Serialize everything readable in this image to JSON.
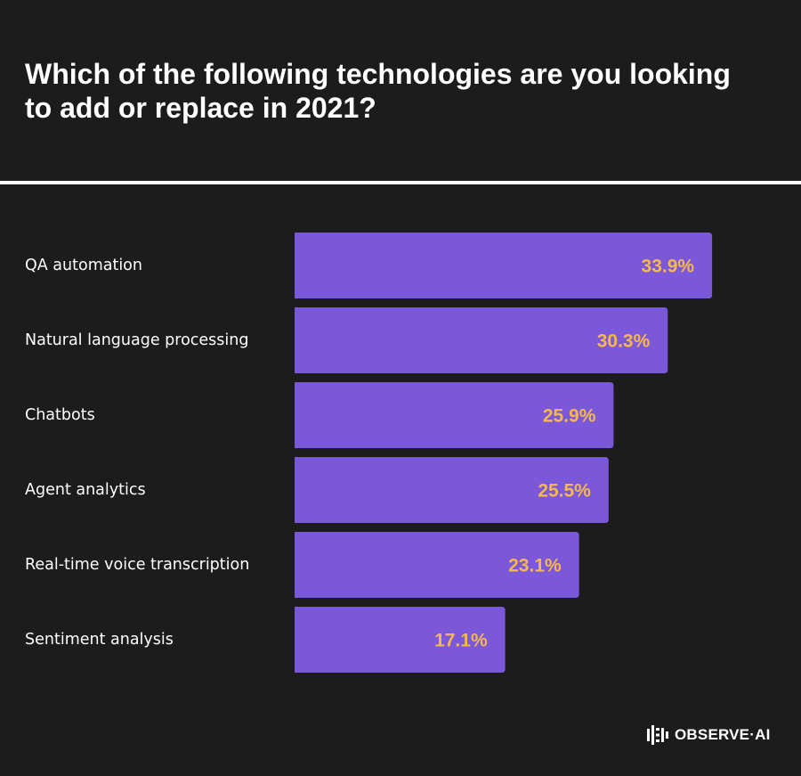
{
  "chart_data": {
    "type": "bar",
    "orientation": "horizontal",
    "title": "Which of the following technologies are you looking to add or replace in 2021?",
    "categories": [
      "QA automation",
      "Natural language processing",
      "Chatbots",
      "Agent analytics",
      "Real-time voice transcription",
      "Sentiment analysis"
    ],
    "values": [
      33.9,
      30.3,
      25.9,
      25.5,
      23.1,
      17.1
    ],
    "value_labels": [
      "33.9%",
      "30.3%",
      "25.9%",
      "25.5%",
      "23.1%",
      "17.1%"
    ],
    "unit": "%",
    "xlim": [
      0,
      37
    ],
    "grid": false,
    "legend": "none"
  },
  "colors": {
    "background": "#1c1c1c",
    "bar": "#7b57d9",
    "value_label": "#f5b84e",
    "text": "#ffffff"
  },
  "brand": {
    "logo_icon": "observe-ai-logo-icon",
    "logo_text": "OBSERVE·AI"
  }
}
